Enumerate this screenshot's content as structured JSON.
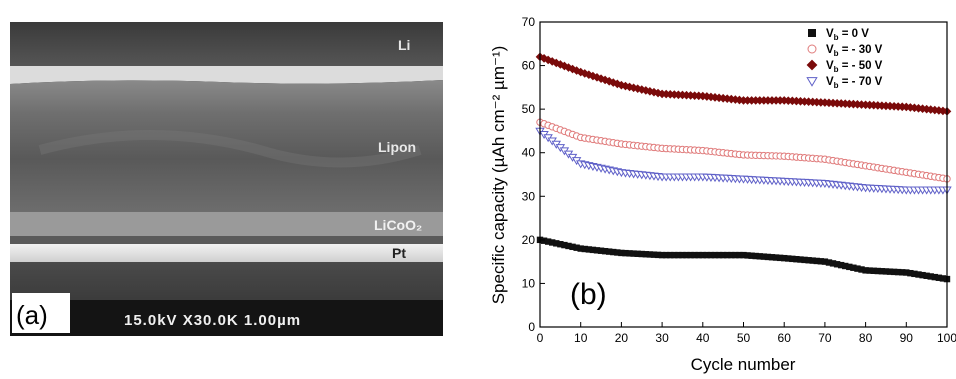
{
  "panel_a": {
    "label": "(a)",
    "layers": [
      "Li",
      "Lipon",
      "LiCoO₂",
      "Pt"
    ],
    "scale_bar": "15.0kV X30.0K 1.00µm"
  },
  "panel_b": {
    "label": "(b)"
  },
  "chart_data": {
    "type": "scatter",
    "xlabel": "Cycle number",
    "ylabel": "Specific capacity (µAh cm⁻² µm⁻¹)",
    "xlim": [
      0,
      100
    ],
    "ylim": [
      0,
      70
    ],
    "xticks": [
      0,
      10,
      20,
      30,
      40,
      50,
      60,
      70,
      80,
      90,
      100
    ],
    "yticks": [
      0,
      10,
      20,
      30,
      40,
      50,
      60,
      70
    ],
    "grid": false,
    "legend_position": "top-right",
    "x": [
      0,
      10,
      20,
      30,
      40,
      50,
      60,
      70,
      80,
      90,
      100
    ],
    "series": [
      {
        "name": "Vb = 0 V",
        "legend": {
          "pre": "V",
          "sub": "b",
          "post": " = 0 V"
        },
        "marker": "square-filled",
        "color": "#111111",
        "values": [
          20,
          18,
          17,
          16.5,
          16.5,
          16.5,
          15.8,
          15,
          13,
          12.5,
          11
        ]
      },
      {
        "name": "Vb = - 30 V",
        "legend": {
          "pre": "V",
          "sub": "b",
          "post": " = - 30 V"
        },
        "marker": "circle-open",
        "color": "#e07b7b",
        "values": [
          47,
          43.5,
          42,
          41,
          40.5,
          39.5,
          39.2,
          38.5,
          37,
          35.5,
          34
        ]
      },
      {
        "name": "Vb = - 50 V",
        "legend": {
          "pre": "V",
          "sub": "b",
          "post": " = - 50 V"
        },
        "marker": "diamond-filled",
        "color": "#7a0a0a",
        "values": [
          62,
          58.5,
          55.5,
          53.5,
          53,
          52,
          52,
          51.5,
          51,
          50.5,
          49.5
        ]
      },
      {
        "name": "Vb = - 70 V",
        "legend": {
          "pre": "V",
          "sub": "b",
          "post": " = - 70 V"
        },
        "marker": "triangle-down-open",
        "color": "#5f60c8",
        "values": [
          45,
          37.5,
          35.5,
          34.5,
          34.5,
          34,
          33.5,
          33,
          32,
          31.5,
          31.5
        ]
      }
    ]
  },
  "colors": {
    "sem_dark": "#2d2d2d",
    "sem_bright": "#e6e6e6",
    "axis": "#000000"
  }
}
